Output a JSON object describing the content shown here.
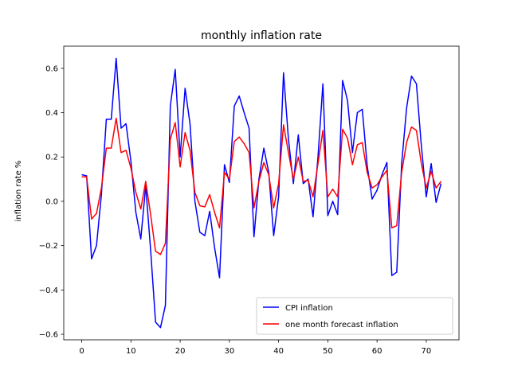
{
  "chart_data": {
    "type": "line",
    "title": "monthly inflation rate",
    "xlabel": "",
    "ylabel": "inflation rate %",
    "xlim": [
      -3.65,
      76.65
    ],
    "ylim": [
      -0.625,
      0.7
    ],
    "xticks": [
      0,
      10,
      20,
      30,
      40,
      50,
      60,
      70
    ],
    "yticks": [
      -0.6,
      -0.4,
      -0.2,
      0.0,
      0.2,
      0.4,
      0.6
    ],
    "ytick_labels": [
      "−0.6",
      "−0.4",
      "−0.2",
      "0.0",
      "0.2",
      "0.4",
      "0.6"
    ],
    "grid": false,
    "legend_position": "lower-right",
    "series": [
      {
        "name": "CPI inflation",
        "color": "#0000ff",
        "values": [
          0.12,
          0.115,
          -0.26,
          -0.2,
          0.03,
          0.37,
          0.37,
          0.645,
          0.33,
          0.35,
          0.18,
          -0.05,
          -0.17,
          0.07,
          -0.22,
          -0.545,
          -0.57,
          -0.47,
          0.43,
          0.595,
          0.2,
          0.51,
          0.35,
          0.0,
          -0.14,
          -0.155,
          -0.045,
          -0.21,
          -0.345,
          0.165,
          0.085,
          0.43,
          0.475,
          0.4,
          0.33,
          -0.16,
          0.1,
          0.24,
          0.13,
          -0.155,
          0.02,
          0.58,
          0.28,
          0.08,
          0.3,
          0.08,
          0.1,
          -0.07,
          0.2,
          0.53,
          -0.065,
          0.0,
          -0.06,
          0.545,
          0.455,
          0.22,
          0.4,
          0.415,
          0.16,
          0.01,
          0.05,
          0.12,
          0.175,
          -0.335,
          -0.32,
          0.17,
          0.42,
          0.565,
          0.53,
          0.25,
          0.02,
          0.17,
          -0.005,
          0.08
        ]
      },
      {
        "name": "one month forecast inflation",
        "color": "#ff0000",
        "values": [
          0.11,
          0.11,
          -0.08,
          -0.055,
          0.06,
          0.24,
          0.24,
          0.375,
          0.22,
          0.23,
          0.15,
          0.04,
          -0.035,
          0.09,
          -0.06,
          -0.225,
          -0.24,
          -0.19,
          0.28,
          0.355,
          0.155,
          0.31,
          0.23,
          0.04,
          -0.02,
          -0.025,
          0.03,
          -0.05,
          -0.12,
          0.13,
          0.1,
          0.27,
          0.29,
          0.26,
          0.22,
          -0.03,
          0.09,
          0.175,
          0.12,
          -0.03,
          0.08,
          0.345,
          0.22,
          0.1,
          0.2,
          0.09,
          0.095,
          0.02,
          0.17,
          0.32,
          0.02,
          0.055,
          0.02,
          0.325,
          0.285,
          0.165,
          0.255,
          0.265,
          0.13,
          0.06,
          0.075,
          0.11,
          0.14,
          -0.12,
          -0.11,
          0.13,
          0.265,
          0.335,
          0.32,
          0.17,
          0.06,
          0.135,
          0.06,
          0.09
        ]
      }
    ]
  }
}
